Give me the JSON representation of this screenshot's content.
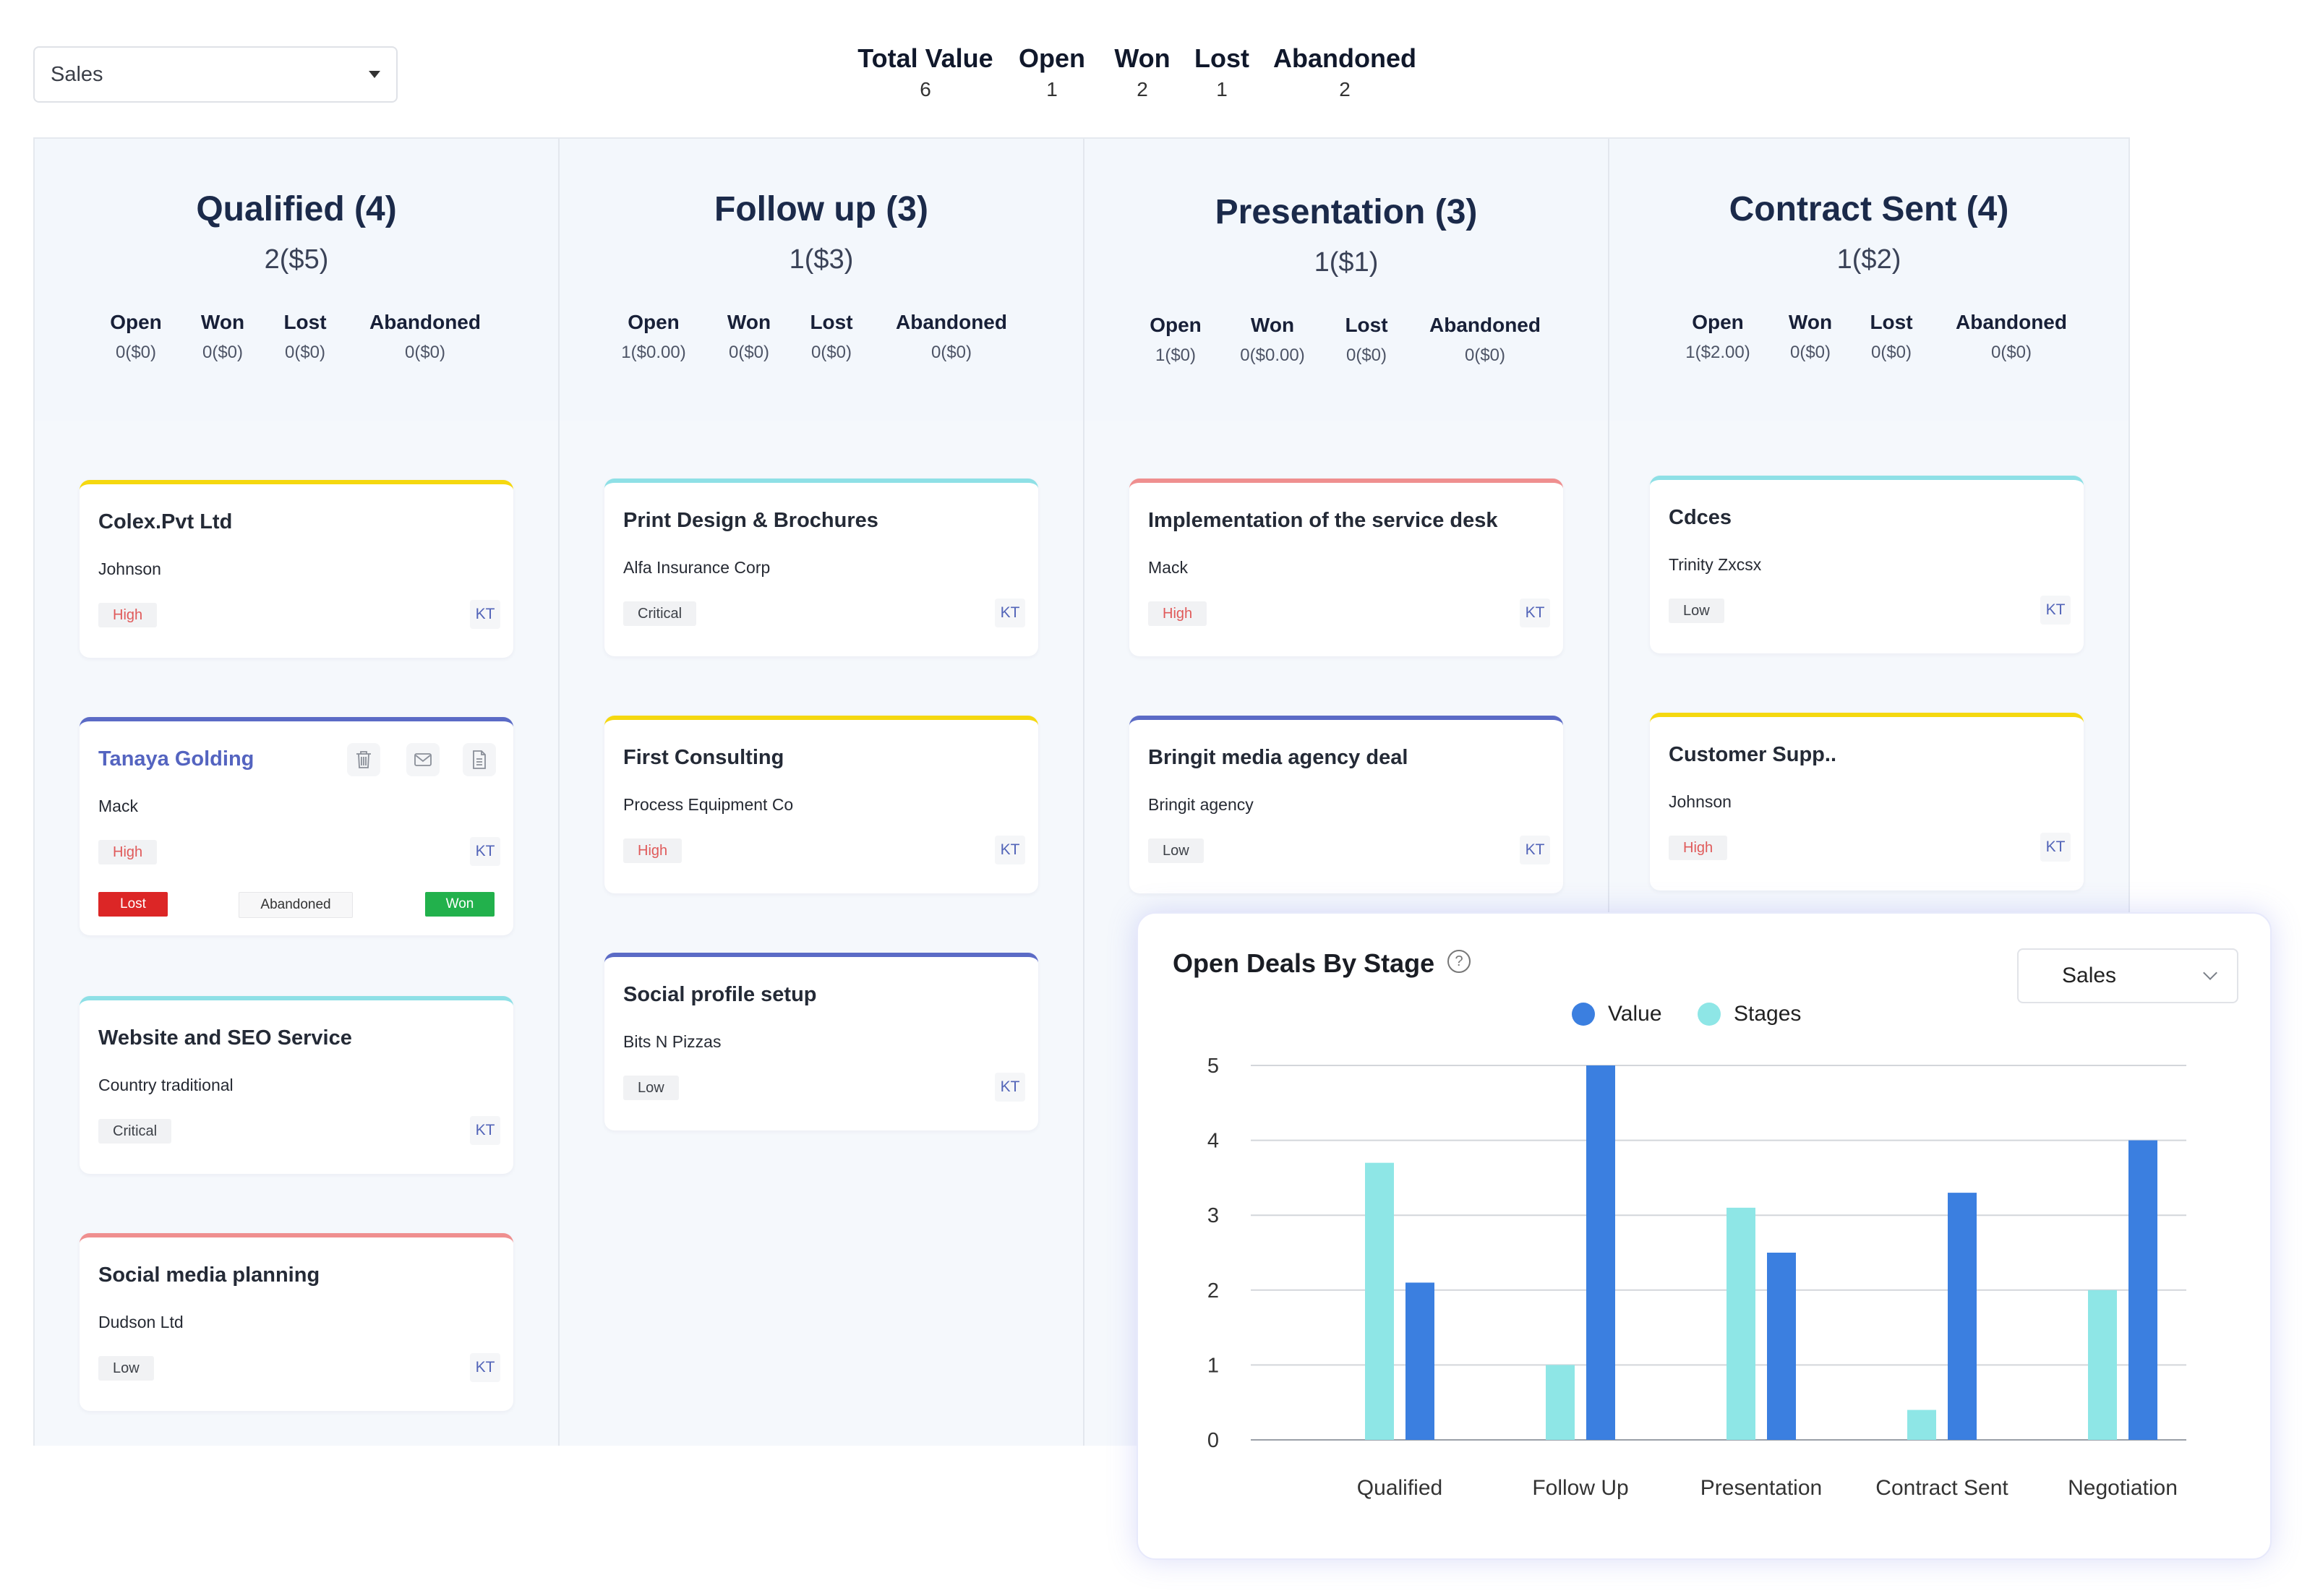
{
  "pipeline_select": {
    "value": "Sales"
  },
  "summary": [
    {
      "label": "Total Value",
      "value": "6"
    },
    {
      "label": "Open",
      "value": "1"
    },
    {
      "label": "Won",
      "value": "2"
    },
    {
      "label": "Lost",
      "value": "1"
    },
    {
      "label": "Abandoned",
      "value": "2"
    }
  ],
  "columns": [
    {
      "title": "Qualified (4)",
      "summary": "2($5)",
      "stats": [
        {
          "label": "Open",
          "value": "0($0)"
        },
        {
          "label": "Won",
          "value": "0($0)"
        },
        {
          "label": "Lost",
          "value": "0($0)"
        },
        {
          "label": "Abandoned",
          "value": "0($0)"
        }
      ],
      "cards": [
        {
          "title": "Colex.Pvt Ltd",
          "subtitle": "Johnson",
          "priority": "High",
          "owner": "KT",
          "color": "#f5d80f"
        },
        {
          "title": "Tanaya Golding",
          "subtitle": "Mack",
          "priority": "High",
          "owner": "KT",
          "color": "#5b6bc6",
          "actions": {
            "lost": "Lost",
            "abandoned": "Abandoned",
            "won": "Won"
          },
          "icons": [
            "trash-icon",
            "mail-icon",
            "document-icon"
          ]
        },
        {
          "title": "Website and SEO Service",
          "subtitle": "Country traditional",
          "priority": "Critical",
          "owner": "KT",
          "color": "#8ee0e6"
        },
        {
          "title": "Social media planning",
          "subtitle": "Dudson Ltd",
          "priority": "Low",
          "owner": "KT",
          "color": "#ef8f8f"
        }
      ]
    },
    {
      "title": "Follow up (3)",
      "summary": "1($3)",
      "stats": [
        {
          "label": "Open",
          "value": "1($0.00)"
        },
        {
          "label": "Won",
          "value": "0($0)"
        },
        {
          "label": "Lost",
          "value": "0($0)"
        },
        {
          "label": "Abandoned",
          "value": "0($0)"
        }
      ],
      "cards": [
        {
          "title": "Print Design & Brochures",
          "subtitle": "Alfa Insurance Corp",
          "priority": "Critical",
          "owner": "KT",
          "color": "#8ee0e6"
        },
        {
          "title": "First Consulting",
          "subtitle": "Process Equipment Co",
          "priority": "High",
          "owner": "KT",
          "color": "#f5d80f"
        },
        {
          "title": "Social profile setup",
          "subtitle": "Bits N Pizzas",
          "priority": "Low",
          "owner": "KT",
          "color": "#5b6bc6"
        }
      ]
    },
    {
      "title": "Presentation (3)",
      "summary": "1($1)",
      "stats": [
        {
          "label": "Open",
          "value": "1($0)"
        },
        {
          "label": "Won",
          "value": "0($0.00)"
        },
        {
          "label": "Lost",
          "value": "0($0)"
        },
        {
          "label": "Abandoned",
          "value": "0($0)"
        }
      ],
      "cards": [
        {
          "title": "Implementation of the service desk",
          "subtitle": "Mack",
          "priority": "High",
          "owner": "KT",
          "color": "#ef8f8f"
        },
        {
          "title": "Bringit media agency deal",
          "subtitle": "Bringit agency",
          "priority": "Low",
          "owner": "KT",
          "color": "#5b6bc6"
        }
      ]
    },
    {
      "title": "Contract Sent (4)",
      "summary": "1($2)",
      "stats": [
        {
          "label": "Open",
          "value": "1($2.00)"
        },
        {
          "label": "Won",
          "value": "0($0)"
        },
        {
          "label": "Lost",
          "value": "0($0)"
        },
        {
          "label": "Abandoned",
          "value": "0($0)"
        }
      ],
      "cards": [
        {
          "title": "Cdces",
          "subtitle": "Trinity Zxcsx",
          "priority": "Low",
          "owner": "KT",
          "color": "#8ee0e6"
        },
        {
          "title": "Customer Supp..",
          "subtitle": "Johnson",
          "priority": "High",
          "owner": "KT",
          "color": "#f5d80f"
        }
      ]
    }
  ],
  "chart_panel": {
    "title": "Open Deals By Stage",
    "select_value": "Sales"
  },
  "chart_data": {
    "type": "bar",
    "title": "Open Deals By Stage",
    "categories": [
      "Qualified",
      "Follow Up",
      "Presentation",
      "Contract Sent",
      "Negotiation"
    ],
    "series": [
      {
        "name": "Stages",
        "color": "#8ee6e6",
        "values": [
          3.7,
          1,
          3.1,
          0.4,
          2
        ]
      },
      {
        "name": "Value",
        "color": "#3b7fe0",
        "values": [
          2.1,
          5,
          2.5,
          3.3,
          4
        ]
      }
    ],
    "legend_order": [
      "Value",
      "Stages"
    ],
    "yticks": [
      "5",
      "4",
      "3",
      "2",
      "1",
      "0"
    ],
    "ylim": [
      0,
      5
    ],
    "grid": true,
    "legend_position": "top-center"
  }
}
